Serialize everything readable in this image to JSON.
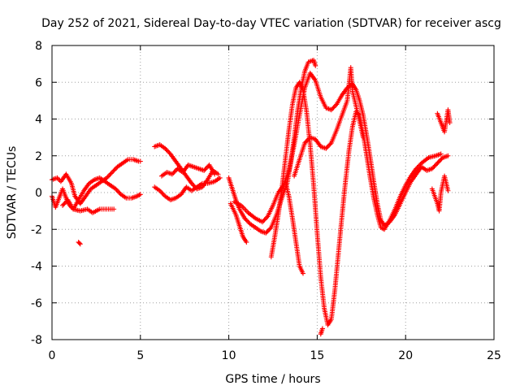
{
  "chart_data": {
    "type": "scatter",
    "title": "Day 252 of 2021, Sidereal Day-to-day VTEC variation (SDTVAR) for receiver ascg",
    "xlabel": "GPS time / hours",
    "ylabel": "SDTVAR / TECUs",
    "xlim": [
      0,
      25
    ],
    "ylim": [
      -8,
      8
    ],
    "xticks": [
      0,
      5,
      10,
      15,
      20,
      25
    ],
    "yticks": [
      -8,
      -6,
      -4,
      -2,
      0,
      2,
      4,
      6,
      8
    ],
    "grid": true,
    "marker": "+",
    "color": "#ff0000",
    "series": [
      {
        "segments": [
          [
            [
              0.0,
              0.7
            ],
            [
              0.3,
              0.8
            ],
            [
              0.5,
              0.6
            ],
            [
              0.8,
              1.0
            ],
            [
              1.1,
              0.5
            ],
            [
              1.3,
              -0.2
            ],
            [
              1.6,
              -0.6
            ],
            [
              1.9,
              -0.2
            ],
            [
              2.2,
              0.2
            ],
            [
              2.5,
              0.4
            ],
            [
              2.8,
              0.6
            ],
            [
              3.1,
              0.8
            ],
            [
              3.4,
              1.1
            ],
            [
              3.7,
              1.4
            ],
            [
              4.0,
              1.6
            ],
            [
              4.3,
              1.8
            ],
            [
              4.6,
              1.8
            ],
            [
              4.9,
              1.7
            ],
            [
              5.0,
              1.7
            ]
          ],
          [
            [
              0.0,
              -0.2
            ],
            [
              0.2,
              -0.8
            ],
            [
              0.4,
              -0.3
            ],
            [
              0.6,
              0.2
            ],
            [
              0.8,
              -0.3
            ],
            [
              1.0,
              -0.7
            ],
            [
              1.2,
              -0.9
            ],
            [
              1.5,
              -0.4
            ],
            [
              1.8,
              0.1
            ],
            [
              2.1,
              0.5
            ],
            [
              2.4,
              0.7
            ],
            [
              2.7,
              0.8
            ],
            [
              3.0,
              0.6
            ],
            [
              3.3,
              0.4
            ],
            [
              3.6,
              0.2
            ],
            [
              3.9,
              -0.1
            ],
            [
              4.2,
              -0.3
            ],
            [
              4.5,
              -0.3
            ],
            [
              4.8,
              -0.2
            ],
            [
              5.0,
              -0.1
            ]
          ],
          [
            [
              0.6,
              -0.7
            ],
            [
              0.9,
              -0.4
            ],
            [
              1.2,
              -0.9
            ],
            [
              1.6,
              -1.0
            ],
            [
              2.0,
              -0.9
            ],
            [
              2.3,
              -1.1
            ],
            [
              2.7,
              -0.9
            ],
            [
              3.1,
              -0.9
            ],
            [
              3.5,
              -0.9
            ]
          ],
          [
            [
              1.5,
              -2.7
            ],
            [
              1.6,
              -2.8
            ]
          ],
          [
            [
              5.8,
              0.3
            ],
            [
              6.1,
              0.1
            ],
            [
              6.4,
              -0.2
            ],
            [
              6.7,
              -0.4
            ],
            [
              7.0,
              -0.3
            ],
            [
              7.3,
              -0.1
            ],
            [
              7.6,
              0.3
            ],
            [
              7.9,
              0.1
            ],
            [
              8.2,
              0.3
            ],
            [
              8.5,
              0.5
            ],
            [
              8.8,
              0.5
            ],
            [
              9.2,
              0.6
            ],
            [
              9.5,
              0.8
            ]
          ],
          [
            [
              5.8,
              2.5
            ],
            [
              6.1,
              2.6
            ],
            [
              6.4,
              2.4
            ],
            [
              6.7,
              2.1
            ],
            [
              7.0,
              1.7
            ],
            [
              7.3,
              1.3
            ],
            [
              7.6,
              0.9
            ],
            [
              7.9,
              0.5
            ],
            [
              8.2,
              0.2
            ],
            [
              8.5,
              0.3
            ],
            [
              8.8,
              0.7
            ],
            [
              9.1,
              1.2
            ],
            [
              9.4,
              1.0
            ]
          ],
          [
            [
              6.2,
              0.9
            ],
            [
              6.5,
              1.1
            ],
            [
              6.8,
              1.0
            ],
            [
              7.1,
              1.3
            ],
            [
              7.4,
              1.1
            ],
            [
              7.7,
              1.5
            ],
            [
              8.0,
              1.4
            ],
            [
              8.3,
              1.3
            ],
            [
              8.6,
              1.2
            ],
            [
              8.9,
              1.5
            ],
            [
              9.2,
              1.0
            ]
          ],
          [
            [
              10.0,
              0.8
            ],
            [
              10.2,
              0.2
            ],
            [
              10.4,
              -0.4
            ],
            [
              10.6,
              -0.9
            ],
            [
              10.9,
              -1.4
            ],
            [
              11.2,
              -1.7
            ],
            [
              11.5,
              -1.9
            ],
            [
              11.8,
              -2.1
            ],
            [
              12.1,
              -2.2
            ],
            [
              12.4,
              -1.9
            ],
            [
              12.7,
              -1.2
            ],
            [
              13.0,
              -0.3
            ],
            [
              13.3,
              0.5
            ],
            [
              13.5,
              1.6
            ],
            [
              13.7,
              3.0
            ],
            [
              13.9,
              4.5
            ],
            [
              14.1,
              5.7
            ],
            [
              14.3,
              6.6
            ],
            [
              14.5,
              7.1
            ],
            [
              14.8,
              7.2
            ],
            [
              14.9,
              6.9
            ]
          ],
          [
            [
              10.1,
              -0.6
            ],
            [
              10.4,
              -1.2
            ],
            [
              10.6,
              -1.8
            ],
            [
              10.8,
              -2.4
            ],
            [
              11.0,
              -2.7
            ]
          ],
          [
            [
              10.3,
              -0.5
            ],
            [
              10.7,
              -0.7
            ],
            [
              11.1,
              -1.1
            ],
            [
              11.5,
              -1.4
            ],
            [
              11.9,
              -1.6
            ],
            [
              12.2,
              -1.3
            ],
            [
              12.5,
              -0.7
            ],
            [
              12.8,
              0.0
            ],
            [
              13.1,
              0.4
            ],
            [
              13.4,
              1.2
            ],
            [
              13.7,
              2.6
            ],
            [
              14.0,
              4.2
            ],
            [
              14.3,
              5.7
            ],
            [
              14.6,
              6.5
            ],
            [
              14.9,
              6.1
            ],
            [
              15.2,
              5.2
            ],
            [
              15.5,
              4.6
            ],
            [
              15.8,
              4.5
            ],
            [
              16.1,
              4.8
            ],
            [
              16.4,
              5.3
            ],
            [
              16.7,
              5.7
            ],
            [
              17.0,
              5.9
            ],
            [
              17.2,
              5.6
            ],
            [
              17.4,
              5.0
            ],
            [
              17.6,
              4.2
            ],
            [
              17.8,
              3.1
            ],
            [
              18.0,
              1.9
            ],
            [
              18.2,
              0.6
            ],
            [
              18.4,
              -0.6
            ],
            [
              18.6,
              -1.5
            ],
            [
              18.8,
              -1.8
            ],
            [
              19.1,
              -1.6
            ],
            [
              19.4,
              -1.2
            ],
            [
              19.7,
              -0.6
            ],
            [
              20.0,
              0.0
            ],
            [
              20.3,
              0.6
            ],
            [
              20.6,
              1.0
            ],
            [
              20.9,
              1.4
            ],
            [
              21.2,
              1.2
            ],
            [
              21.5,
              1.3
            ],
            [
              21.8,
              1.6
            ],
            [
              22.1,
              1.9
            ],
            [
              22.4,
              2.0
            ]
          ],
          [
            [
              12.4,
              -3.5
            ],
            [
              12.6,
              -2.4
            ],
            [
              12.8,
              -1.2
            ],
            [
              13.0,
              0.2
            ],
            [
              13.2,
              1.8
            ],
            [
              13.4,
              3.4
            ],
            [
              13.6,
              4.8
            ],
            [
              13.8,
              5.7
            ],
            [
              14.0,
              6.0
            ],
            [
              14.2,
              5.6
            ],
            [
              14.4,
              4.4
            ],
            [
              14.6,
              2.6
            ],
            [
              14.8,
              0.4
            ],
            [
              15.0,
              -2.2
            ],
            [
              15.2,
              -4.6
            ],
            [
              15.4,
              -6.3
            ],
            [
              15.6,
              -7.2
            ],
            [
              15.8,
              -6.9
            ],
            [
              16.0,
              -5.3
            ],
            [
              16.2,
              -3.3
            ],
            [
              16.4,
              -1.3
            ],
            [
              16.6,
              0.6
            ],
            [
              16.8,
              2.3
            ],
            [
              17.0,
              3.6
            ],
            [
              17.2,
              4.4
            ],
            [
              17.4,
              4.2
            ],
            [
              17.6,
              3.2
            ],
            [
              17.8,
              2.0
            ],
            [
              18.0,
              0.8
            ],
            [
              18.2,
              -0.3
            ],
            [
              18.4,
              -1.2
            ],
            [
              18.6,
              -1.9
            ],
            [
              18.8,
              -2.0
            ],
            [
              19.1,
              -1.5
            ],
            [
              19.4,
              -0.9
            ],
            [
              19.7,
              -0.2
            ],
            [
              20.0,
              0.4
            ],
            [
              20.3,
              0.9
            ],
            [
              20.6,
              1.3
            ],
            [
              20.9,
              1.6
            ],
            [
              21.3,
              1.9
            ],
            [
              21.7,
              2.0
            ],
            [
              22.0,
              2.1
            ]
          ],
          [
            [
              13.2,
              0.6
            ],
            [
              13.4,
              -0.2
            ],
            [
              13.6,
              -1.4
            ],
            [
              13.8,
              -2.7
            ],
            [
              14.0,
              -4.0
            ],
            [
              14.2,
              -4.4
            ]
          ],
          [
            [
              13.7,
              0.9
            ],
            [
              14.0,
              1.8
            ],
            [
              14.3,
              2.7
            ],
            [
              14.6,
              3.0
            ],
            [
              14.9,
              2.9
            ],
            [
              15.2,
              2.5
            ],
            [
              15.5,
              2.4
            ],
            [
              15.8,
              2.7
            ],
            [
              16.1,
              3.4
            ],
            [
              16.4,
              4.2
            ],
            [
              16.7,
              5.0
            ],
            [
              16.9,
              6.8
            ],
            [
              17.0,
              5.5
            ],
            [
              17.3,
              4.3
            ],
            [
              17.6,
              3.0
            ]
          ],
          [
            [
              15.2,
              -7.7
            ],
            [
              15.3,
              -7.4
            ]
          ],
          [
            [
              21.5,
              0.2
            ],
            [
              21.8,
              -0.6
            ],
            [
              21.9,
              -1.0
            ],
            [
              22.0,
              0.0
            ],
            [
              22.2,
              0.9
            ],
            [
              22.4,
              0.1
            ]
          ],
          [
            [
              21.8,
              4.3
            ],
            [
              22.0,
              3.8
            ],
            [
              22.2,
              3.3
            ],
            [
              22.4,
              4.5
            ],
            [
              22.5,
              3.8
            ]
          ]
        ]
      }
    ]
  }
}
